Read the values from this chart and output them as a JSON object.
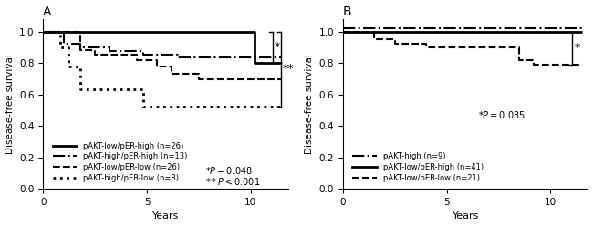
{
  "panel_A": {
    "title": "A",
    "ylabel": "Disease-free survival",
    "xlabel": "Years",
    "xlim": [
      0,
      11.8
    ],
    "ylim": [
      0,
      1.08
    ],
    "xticks": [
      0,
      5,
      10
    ],
    "yticks": [
      0,
      0.2,
      0.4,
      0.6,
      0.8,
      1.0
    ],
    "curves": {
      "pAKT_low_pER_high": {
        "label": "pAKT-low/pER-high (n=26)",
        "linestyle": "solid",
        "linewidth": 2.0,
        "color": "black",
        "x": [
          0,
          10.2,
          10.2,
          11.5
        ],
        "y": [
          1.0,
          1.0,
          0.8,
          0.8
        ]
      },
      "pAKT_high_pER_high": {
        "label": "pAKT-high/pER-high (n=13)",
        "linestyle": "dashdot",
        "linewidth": 1.5,
        "color": "black",
        "x": [
          0,
          1.0,
          1.0,
          1.8,
          1.8,
          3.2,
          3.2,
          4.8,
          4.8,
          6.5,
          6.5,
          8.5,
          8.5,
          11.5
        ],
        "y": [
          1.0,
          1.0,
          0.92,
          0.92,
          0.9,
          0.9,
          0.875,
          0.875,
          0.855,
          0.855,
          0.835,
          0.835,
          0.835,
          0.835
        ]
      },
      "pAKT_low_pER_low": {
        "label": "pAKT-low/pER-low (n=26)",
        "linestyle": "dashed",
        "linewidth": 1.5,
        "color": "black",
        "x": [
          0,
          1.8,
          1.8,
          2.5,
          2.5,
          4.5,
          4.5,
          5.5,
          5.5,
          6.2,
          6.2,
          7.5,
          7.5,
          8.8,
          8.8,
          11.5
        ],
        "y": [
          1.0,
          1.0,
          0.88,
          0.88,
          0.85,
          0.85,
          0.82,
          0.82,
          0.78,
          0.78,
          0.73,
          0.73,
          0.695,
          0.695,
          0.695,
          0.695
        ]
      },
      "pAKT_high_pER_low": {
        "label": "pAKT-high/pER-low (n=8)",
        "linestyle": "dotted",
        "linewidth": 2.0,
        "color": "black",
        "x": [
          0,
          0.8,
          0.8,
          1.2,
          1.2,
          1.8,
          1.8,
          4.8,
          4.8,
          6.5,
          6.5,
          11.5
        ],
        "y": [
          1.0,
          1.0,
          0.9,
          0.9,
          0.78,
          0.78,
          0.63,
          0.63,
          0.52,
          0.52,
          0.52,
          0.52
        ]
      }
    }
  },
  "panel_B": {
    "title": "B",
    "ylabel": "Disease-free survival",
    "xlabel": "Years",
    "xlim": [
      0,
      11.8
    ],
    "ylim": [
      0,
      1.08
    ],
    "xticks": [
      0,
      5,
      10
    ],
    "yticks": [
      0,
      0.2,
      0.4,
      0.6,
      0.8,
      1.0
    ],
    "curves": {
      "pAKT_high": {
        "label": "pAKT-high (n=9)",
        "linestyle": "dashdot",
        "linewidth": 1.5,
        "color": "black",
        "x": [
          0,
          11.5
        ],
        "y": [
          1.02,
          1.02
        ]
      },
      "pAKT_low_pER_high": {
        "label": "pAKT-low/pER-high (n=41)",
        "linestyle": "solid",
        "linewidth": 2.0,
        "color": "black",
        "x": [
          0,
          11.5
        ],
        "y": [
          1.0,
          1.0
        ]
      },
      "pAKT_low_pER_low": {
        "label": "pAKT-low/pER-low (n=21)",
        "linestyle": "dashed",
        "linewidth": 1.5,
        "color": "black",
        "x": [
          0,
          1.5,
          1.5,
          2.5,
          2.5,
          4.0,
          4.0,
          8.5,
          8.5,
          9.2,
          9.2,
          11.5
        ],
        "y": [
          1.0,
          1.0,
          0.95,
          0.95,
          0.92,
          0.92,
          0.9,
          0.9,
          0.82,
          0.82,
          0.79,
          0.79
        ]
      }
    }
  }
}
